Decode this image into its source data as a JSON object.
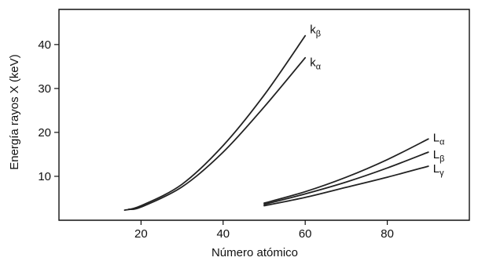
{
  "chart_data": {
    "type": "line",
    "title": "",
    "xlabel": "Número atómico",
    "ylabel": "Energía rayos X (keV)",
    "xlim": [
      0,
      100
    ],
    "ylim": [
      0,
      48
    ],
    "xticks": [
      20,
      40,
      60,
      80
    ],
    "yticks": [
      10,
      20,
      30,
      40
    ],
    "grid": false,
    "legend": "none",
    "series": [
      {
        "name": "kβ",
        "label_main": "k",
        "label_sub": "β",
        "x": [
          16,
          20,
          30,
          40,
          50,
          60
        ],
        "y": [
          2.3,
          3.3,
          8.2,
          17.0,
          28.5,
          42.0
        ]
      },
      {
        "name": "kα",
        "label_main": "k",
        "label_sub": "α",
        "x": [
          17,
          20,
          30,
          40,
          50,
          60
        ],
        "y": [
          2.5,
          3.0,
          7.6,
          15.5,
          25.8,
          37.0
        ]
      },
      {
        "name": "Lα",
        "label_main": "L",
        "label_sub": "α",
        "x": [
          50,
          60,
          70,
          80,
          90
        ],
        "y": [
          3.9,
          6.5,
          9.8,
          13.8,
          18.5
        ]
      },
      {
        "name": "Lβ",
        "label_main": "L",
        "label_sub": "β",
        "x": [
          50,
          60,
          70,
          80,
          90
        ],
        "y": [
          3.6,
          6.0,
          8.7,
          11.9,
          15.5
        ]
      },
      {
        "name": "Lγ",
        "label_main": "L",
        "label_sub": "γ",
        "x": [
          50,
          60,
          70,
          80,
          90
        ],
        "y": [
          3.3,
          5.2,
          7.5,
          9.8,
          12.3
        ]
      }
    ]
  }
}
